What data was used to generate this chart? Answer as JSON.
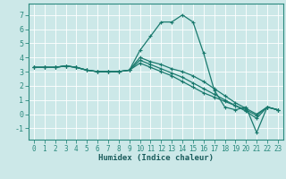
{
  "xlabel": "Humidex (Indice chaleur)",
  "background_color": "#cce8e8",
  "grid_color": "#ffffff",
  "line_color": "#1a7a6e",
  "x_values": [
    0,
    1,
    2,
    3,
    4,
    5,
    6,
    7,
    8,
    9,
    10,
    11,
    12,
    13,
    14,
    15,
    16,
    17,
    18,
    19,
    20,
    21,
    22,
    23
  ],
  "series": [
    [
      3.3,
      3.3,
      3.3,
      3.4,
      3.3,
      3.1,
      3.0,
      3.0,
      3.0,
      3.1,
      4.5,
      5.5,
      6.5,
      6.5,
      7.0,
      6.5,
      4.3,
      1.7,
      0.5,
      0.3,
      0.5,
      -1.3,
      0.5,
      0.3
    ],
    [
      3.3,
      3.3,
      3.3,
      3.4,
      3.3,
      3.1,
      3.0,
      3.0,
      3.0,
      3.1,
      4.0,
      3.7,
      3.5,
      3.2,
      3.0,
      2.7,
      2.3,
      1.8,
      1.3,
      0.8,
      0.4,
      0.0,
      0.5,
      0.3
    ],
    [
      3.3,
      3.3,
      3.3,
      3.4,
      3.3,
      3.1,
      3.0,
      3.0,
      3.0,
      3.1,
      3.8,
      3.5,
      3.2,
      2.9,
      2.6,
      2.2,
      1.8,
      1.4,
      1.0,
      0.6,
      0.3,
      -0.1,
      0.5,
      0.3
    ],
    [
      3.3,
      3.3,
      3.3,
      3.4,
      3.3,
      3.1,
      3.0,
      3.0,
      3.0,
      3.1,
      3.6,
      3.3,
      3.0,
      2.7,
      2.3,
      1.9,
      1.5,
      1.2,
      0.9,
      0.6,
      0.2,
      -0.3,
      0.5,
      0.3
    ]
  ],
  "ylim": [
    -1.8,
    7.8
  ],
  "xlim": [
    -0.5,
    23.5
  ],
  "yticks": [
    -1,
    0,
    1,
    2,
    3,
    4,
    5,
    6,
    7
  ],
  "xticks": [
    0,
    1,
    2,
    3,
    4,
    5,
    6,
    7,
    8,
    9,
    10,
    11,
    12,
    13,
    14,
    15,
    16,
    17,
    18,
    19,
    20,
    21,
    22,
    23
  ],
  "tick_fontsize": 5.5,
  "xlabel_fontsize": 6.5,
  "marker_size": 3.5,
  "linewidth": 0.9
}
